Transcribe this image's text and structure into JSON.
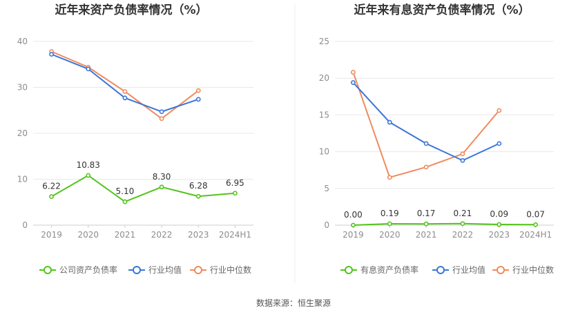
{
  "source_label": "数据来源：恒生聚源",
  "colors": {
    "company": "#52c41a",
    "industry_avg": "#3b74d9",
    "industry_median": "#f08a5d",
    "grid": "#e8e8ee",
    "axis": "#cccccc"
  },
  "chart_data": [
    {
      "type": "line",
      "title": "近年来资产负债率情况（%）",
      "categories": [
        "2019",
        "2020",
        "2021",
        "2022",
        "2023",
        "2024H1"
      ],
      "ylim": [
        0,
        40
      ],
      "yticks": [
        0,
        10,
        20,
        30,
        40
      ],
      "grid": true,
      "legend_position": "bottom",
      "series": [
        {
          "name": "公司资产负债率",
          "color_key": "company",
          "labels": true,
          "values": [
            6.22,
            10.83,
            5.1,
            8.3,
            6.28,
            6.95
          ],
          "value_labels": [
            "6.22",
            "10.83",
            "5.10",
            "8.30",
            "6.28",
            "6.95"
          ]
        },
        {
          "name": "行业均值",
          "color_key": "industry_avg",
          "labels": false,
          "values": [
            37.2,
            34.0,
            27.7,
            24.7,
            27.4,
            null
          ]
        },
        {
          "name": "行业中位数",
          "color_key": "industry_median",
          "labels": false,
          "values": [
            37.8,
            34.4,
            29.1,
            23.2,
            29.3,
            null
          ]
        }
      ]
    },
    {
      "type": "line",
      "title": "近年来有息资产负债率情况（%）",
      "categories": [
        "2019",
        "2020",
        "2021",
        "2022",
        "2023",
        "2024H1"
      ],
      "ylim": [
        0,
        25
      ],
      "yticks": [
        0,
        5,
        10,
        15,
        20,
        25
      ],
      "grid": true,
      "legend_position": "bottom",
      "series": [
        {
          "name": "有息资产负债率",
          "color_key": "company",
          "labels": true,
          "values": [
            0.0,
            0.19,
            0.17,
            0.21,
            0.09,
            0.07
          ],
          "value_labels": [
            "0.00",
            "0.19",
            "0.17",
            "0.21",
            "0.09",
            "0.07"
          ]
        },
        {
          "name": "行业均值",
          "color_key": "industry_avg",
          "labels": false,
          "values": [
            19.4,
            14.0,
            11.1,
            8.8,
            11.1,
            null
          ]
        },
        {
          "name": "行业中位数",
          "color_key": "industry_median",
          "labels": false,
          "values": [
            20.8,
            6.5,
            7.9,
            9.7,
            15.6,
            null
          ]
        }
      ]
    }
  ]
}
